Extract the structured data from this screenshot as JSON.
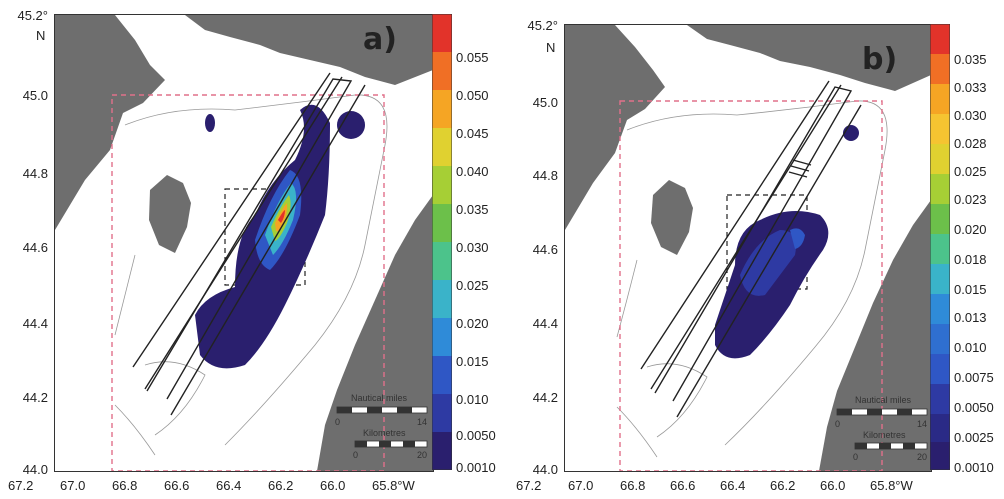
{
  "panels": [
    {
      "letter": "a)",
      "north_label": "N",
      "lat_ticks": [
        "45.2°",
        "45.0",
        "44.8",
        "44.6",
        "44.4",
        "44.2",
        "44.0"
      ],
      "lon_ticks": [
        "67.2",
        "67.0",
        "66.8",
        "66.6",
        "66.4",
        "66.2",
        "66.0",
        "65.8°W"
      ],
      "colorbar_ticks": [
        "0.055",
        "0.050",
        "0.045",
        "0.040",
        "0.035",
        "0.030",
        "0.025",
        "0.020",
        "0.015",
        "0.010",
        "0.0050",
        "0.0010"
      ],
      "scale_bar": {
        "nautical_label": "Nautical miles",
        "nautical_ticks": [
          "0",
          "14"
        ],
        "km_label": "Kilometres",
        "km_ticks": [
          "0",
          "20"
        ]
      }
    },
    {
      "letter": "b)",
      "north_label": "N",
      "lat_ticks": [
        "45.2°",
        "45.0",
        "44.8",
        "44.6",
        "44.4",
        "44.2",
        "44.0"
      ],
      "lon_ticks": [
        "67.2",
        "67.0",
        "66.8",
        "66.6",
        "66.4",
        "66.2",
        "66.0",
        "65.8°W"
      ],
      "colorbar_ticks": [
        "0.035",
        "0.033",
        "0.030",
        "0.028",
        "0.025",
        "0.023",
        "0.020",
        "0.018",
        "0.015",
        "0.013",
        "0.010",
        "0.0075",
        "0.0050",
        "0.0025",
        "0.0010"
      ],
      "scale_bar": {
        "nautical_label": "Nautical miles",
        "nautical_ticks": [
          "0",
          "14"
        ],
        "km_label": "Kilometres",
        "km_ticks": [
          "0",
          "20"
        ]
      }
    }
  ],
  "colors": {
    "land": "#6e6e6e",
    "study_area_outline": "#e0708a",
    "colorscale": [
      "#2a1f6e",
      "#2e3aa3",
      "#2f57c5",
      "#2f8bd8",
      "#3ab3c9",
      "#4cc38b",
      "#6cc04a",
      "#a6cf35",
      "#e0d130",
      "#f5a524",
      "#f06f25",
      "#e2332a"
    ]
  }
}
